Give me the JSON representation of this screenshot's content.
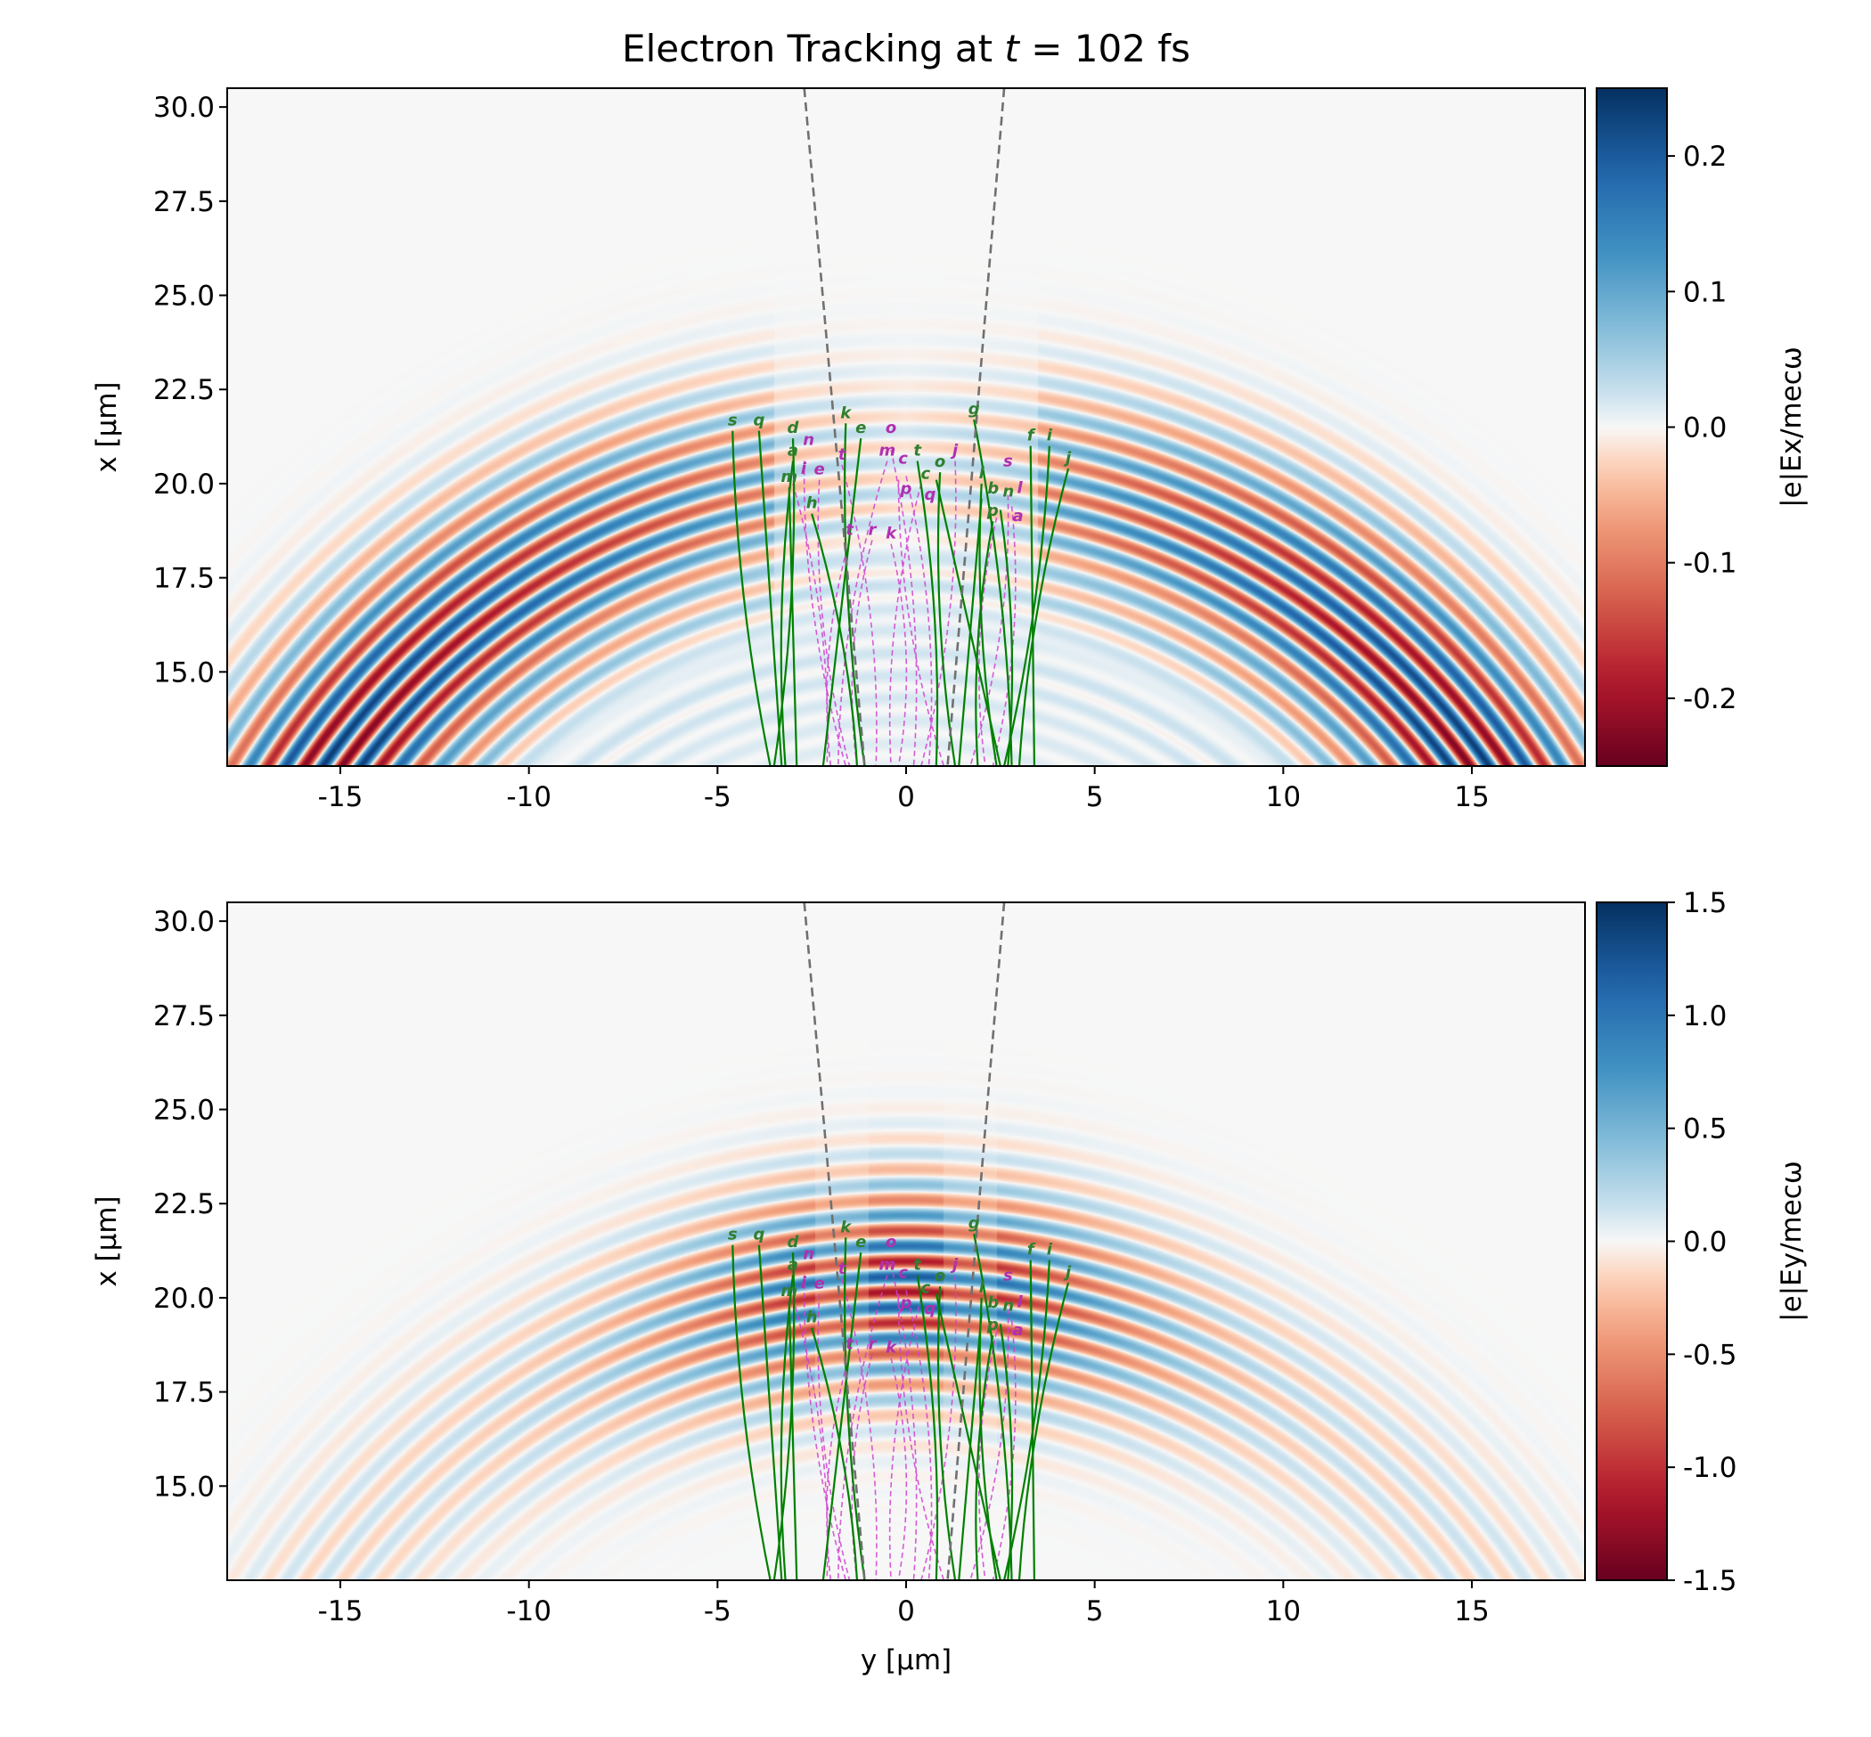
{
  "title": "Electron Tracking at t = 102 fs",
  "title_parts": {
    "prefix": "Electron Tracking at ",
    "var": "t",
    "suffix": " = 102 fs"
  },
  "chart_data": [
    {
      "type": "heatmap",
      "field": "Ex",
      "colormap": "RdBu",
      "xlabel": "",
      "ylabel": "x [µm]",
      "colorbar_label": "|e|Ex/mecω",
      "xlim": [
        -18,
        18
      ],
      "ylim": [
        12.5,
        30.5
      ],
      "clim": [
        -0.25,
        0.25
      ],
      "xticks": [
        -15,
        -10,
        -5,
        0,
        5,
        10,
        15
      ],
      "xtick_labels": [
        "-15",
        "-10",
        "-5",
        "0",
        "5",
        "10",
        "15"
      ],
      "yticks": [
        15.0,
        17.5,
        20.0,
        22.5,
        25.0,
        27.5,
        30.0
      ],
      "ytick_labels": [
        "15.0",
        "17.5",
        "20.0",
        "22.5",
        "25.0",
        "27.5",
        "30.0"
      ],
      "cticks": [
        0.2,
        0.1,
        0.0,
        -0.1,
        -0.2
      ],
      "ctick_labels": [
        "0.2",
        "0.1",
        "0.0",
        "-0.1",
        "-0.2"
      ]
    },
    {
      "type": "heatmap",
      "field": "Ey",
      "colormap": "RdBu",
      "xlabel": "y [µm]",
      "ylabel": "x [µm]",
      "colorbar_label": "|e|Ey/mecω",
      "xlim": [
        -18,
        18
      ],
      "ylim": [
        12.5,
        30.5
      ],
      "clim": [
        -1.5,
        1.5
      ],
      "xticks": [
        -15,
        -10,
        -5,
        0,
        5,
        10,
        15
      ],
      "xtick_labels": [
        "-15",
        "-10",
        "-5",
        "0",
        "5",
        "10",
        "15"
      ],
      "yticks": [
        15.0,
        17.5,
        20.0,
        22.5,
        25.0,
        27.5,
        30.0
      ],
      "ytick_labels": [
        "15.0",
        "17.5",
        "20.0",
        "22.5",
        "25.0",
        "27.5",
        "30.0"
      ],
      "cticks": [
        1.5,
        1.0,
        0.5,
        0.0,
        -0.5,
        -1.0,
        -1.5
      ],
      "ctick_labels": [
        "1.5",
        "1.0",
        "0.5",
        "0.0",
        "-0.5",
        "-1.0",
        "-1.5"
      ]
    }
  ],
  "dashed_lines": [
    {
      "color": "#707070",
      "points": [
        [
          -2.7,
          30.5
        ],
        [
          -1.1,
          12.5
        ]
      ]
    },
    {
      "color": "#707070",
      "points": [
        [
          2.6,
          30.5
        ],
        [
          1.1,
          12.5
        ]
      ]
    }
  ],
  "green_tracks": {
    "color": "#008000",
    "items": [
      {
        "label": "s",
        "start": [
          -4.6,
          21.4
        ],
        "end": [
          -3.6,
          12.5
        ]
      },
      {
        "label": "q",
        "start": [
          -3.9,
          21.4
        ],
        "end": [
          -3.3,
          12.5
        ]
      },
      {
        "label": "d",
        "start": [
          -3.0,
          21.2
        ],
        "end": [
          -3.5,
          12.5
        ]
      },
      {
        "label": "a",
        "start": [
          -3.0,
          20.6
        ],
        "end": [
          -3.2,
          12.5
        ]
      },
      {
        "label": "m",
        "start": [
          -3.1,
          19.9
        ],
        "end": [
          -2.9,
          12.5
        ]
      },
      {
        "label": "h",
        "start": [
          -2.5,
          19.2
        ],
        "end": [
          -1.3,
          12.5
        ]
      },
      {
        "label": "k",
        "start": [
          -1.6,
          21.6
        ],
        "end": [
          -1.1,
          12.5
        ]
      },
      {
        "label": "e",
        "start": [
          -1.2,
          21.2
        ],
        "end": [
          -2.2,
          12.5
        ]
      },
      {
        "label": "t",
        "start": [
          0.3,
          20.6
        ],
        "end": [
          0.8,
          12.5
        ]
      },
      {
        "label": "o",
        "start": [
          0.9,
          20.3
        ],
        "end": [
          1.3,
          12.5
        ]
      },
      {
        "label": "c",
        "start": [
          0.8,
          20.1
        ],
        "end": [
          2.5,
          12.5
        ]
      },
      {
        "label": "g",
        "start": [
          1.8,
          21.7
        ],
        "end": [
          2.8,
          12.5
        ]
      },
      {
        "label": "l",
        "start": [
          2.0,
          20.0
        ],
        "end": [
          2.4,
          12.5
        ]
      },
      {
        "label": "b",
        "start": [
          2.0,
          19.6
        ],
        "end": [
          1.4,
          12.5
        ]
      },
      {
        "label": "n",
        "start": [
          2.5,
          19.3
        ],
        "end": [
          2.7,
          12.5
        ]
      },
      {
        "label": "p",
        "start": [
          2.3,
          19.0
        ],
        "end": [
          1.9,
          12.5
        ]
      },
      {
        "label": "f",
        "start": [
          3.3,
          21.0
        ],
        "end": [
          3.4,
          12.5
        ]
      },
      {
        "label": "i",
        "start": [
          3.8,
          21.0
        ],
        "end": [
          2.6,
          12.5
        ]
      },
      {
        "label": "j",
        "start": [
          4.3,
          20.4
        ],
        "end": [
          3.0,
          12.5
        ]
      }
    ]
  },
  "magenta_tracks": {
    "color": "#d040d0",
    "items": [
      {
        "label": "n",
        "start": [
          -2.7,
          20.6
        ],
        "end": [
          -1.6,
          12.5
        ]
      },
      {
        "label": "i",
        "start": [
          -3.0,
          20.0
        ],
        "end": [
          -2.1,
          12.5
        ]
      },
      {
        "label": "e",
        "start": [
          -2.3,
          20.1
        ],
        "end": [
          -1.5,
          12.5
        ]
      },
      {
        "label": "t",
        "start": [
          -1.7,
          20.5
        ],
        "end": [
          -0.8,
          12.5
        ]
      },
      {
        "label": "m",
        "start": [
          -0.5,
          20.6
        ],
        "end": [
          -1.8,
          12.5
        ]
      },
      {
        "label": "o",
        "start": [
          -0.4,
          20.9
        ],
        "end": [
          0.2,
          12.5
        ]
      },
      {
        "label": "c",
        "start": [
          -0.2,
          20.1
        ],
        "end": [
          1.0,
          12.5
        ]
      },
      {
        "label": "p",
        "start": [
          0.0,
          20.2
        ],
        "end": [
          0.6,
          12.5
        ]
      },
      {
        "label": "q",
        "start": [
          0.4,
          20.0
        ],
        "end": [
          -0.4,
          12.5
        ]
      },
      {
        "label": "j",
        "start": [
          1.3,
          20.6
        ],
        "end": [
          0.4,
          12.5
        ]
      },
      {
        "label": "r",
        "start": [
          -0.9,
          18.5
        ],
        "end": [
          -1.3,
          12.5
        ]
      },
      {
        "label": "k",
        "start": [
          -0.4,
          18.4
        ],
        "end": [
          -0.2,
          12.5
        ]
      },
      {
        "label": "t",
        "start": [
          -1.5,
          18.5
        ],
        "end": [
          -2.0,
          12.5
        ]
      },
      {
        "label": "s",
        "start": [
          2.7,
          19.7
        ],
        "end": [
          1.7,
          12.5
        ]
      },
      {
        "label": "a",
        "start": [
          2.4,
          19.1
        ],
        "end": [
          2.1,
          12.5
        ]
      },
      {
        "label": "l",
        "start": [
          2.8,
          19.4
        ],
        "end": [
          2.3,
          12.5
        ]
      }
    ]
  }
}
